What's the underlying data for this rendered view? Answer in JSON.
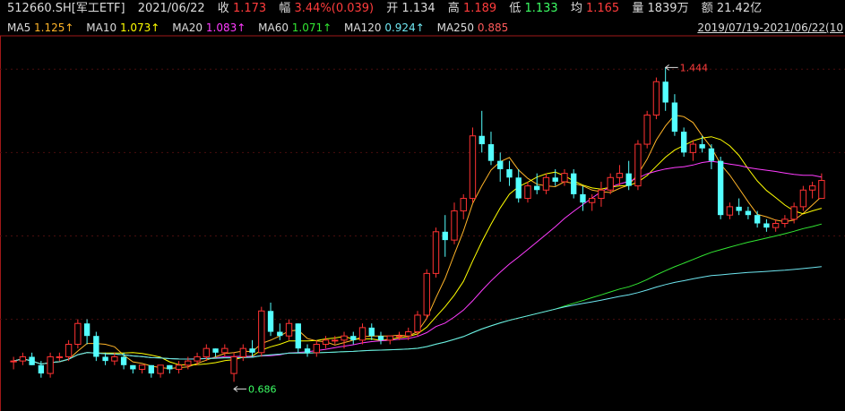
{
  "header": {
    "symbol": "512660.SH[军工ETF]",
    "date": "2021/06/22",
    "close_label": "收",
    "close_value": "1.173",
    "change_label": "幅",
    "change_value": "3.44%(0.039)",
    "open_label": "开",
    "open_value": "1.134",
    "high_label": "高",
    "high_value": "1.189",
    "low_label": "低",
    "low_value": "1.133",
    "avg_label": "均",
    "avg_value": "1.165",
    "volume_label": "量",
    "volume_value": "1839万",
    "amount_label": "额",
    "amount_value": "21.42亿"
  },
  "ma_legend": [
    {
      "name": "MA5",
      "value": "1.125↑",
      "color": "#ffb428"
    },
    {
      "name": "MA10",
      "value": "1.073↑",
      "color": "#ffff00"
    },
    {
      "name": "MA20",
      "value": "1.083↑",
      "color": "#ff3cff"
    },
    {
      "name": "MA60",
      "value": "1.071↑",
      "color": "#32e632"
    },
    {
      "name": "MA120",
      "value": "0.924↑",
      "color": "#6ee6f0"
    },
    {
      "name": "MA250",
      "value": "0.885",
      "color": "#ff5a5a"
    }
  ],
  "date_range": "2019/07/19-2021/06/22(10",
  "colors": {
    "up": "#ff3232",
    "down": "#54ffff",
    "grid": "#4a0e0e",
    "axis": "#a01818",
    "text_up": "#ff3c3c",
    "text_down": "#3cff64"
  },
  "chart_data": {
    "type": "candlestick",
    "y_range": [
      0.62,
      1.52
    ],
    "annotations": [
      {
        "label": "1.444",
        "type": "max"
      },
      {
        "label": "0.686",
        "type": "min"
      }
    ],
    "ohlc": [
      [
        0.74,
        0.75,
        0.72,
        0.74
      ],
      [
        0.74,
        0.76,
        0.73,
        0.75
      ],
      [
        0.75,
        0.76,
        0.73,
        0.73
      ],
      [
        0.73,
        0.74,
        0.7,
        0.71
      ],
      [
        0.71,
        0.76,
        0.7,
        0.75
      ],
      [
        0.75,
        0.76,
        0.74,
        0.75
      ],
      [
        0.75,
        0.79,
        0.74,
        0.78
      ],
      [
        0.78,
        0.84,
        0.77,
        0.83
      ],
      [
        0.83,
        0.84,
        0.78,
        0.8
      ],
      [
        0.8,
        0.81,
        0.74,
        0.75
      ],
      [
        0.75,
        0.76,
        0.73,
        0.74
      ],
      [
        0.74,
        0.76,
        0.73,
        0.75
      ],
      [
        0.75,
        0.76,
        0.72,
        0.73
      ],
      [
        0.73,
        0.73,
        0.71,
        0.72
      ],
      [
        0.72,
        0.73,
        0.71,
        0.73
      ],
      [
        0.73,
        0.73,
        0.7,
        0.71
      ],
      [
        0.71,
        0.73,
        0.7,
        0.73
      ],
      [
        0.73,
        0.73,
        0.71,
        0.72
      ],
      [
        0.72,
        0.74,
        0.71,
        0.73
      ],
      [
        0.73,
        0.75,
        0.72,
        0.74
      ],
      [
        0.74,
        0.76,
        0.73,
        0.75
      ],
      [
        0.75,
        0.78,
        0.74,
        0.77
      ],
      [
        0.77,
        0.77,
        0.75,
        0.76
      ],
      [
        0.76,
        0.78,
        0.75,
        0.77
      ],
      [
        0.71,
        0.76,
        0.69,
        0.75
      ],
      [
        0.75,
        0.78,
        0.74,
        0.77
      ],
      [
        0.77,
        0.79,
        0.75,
        0.76
      ],
      [
        0.76,
        0.87,
        0.75,
        0.86
      ],
      [
        0.86,
        0.88,
        0.8,
        0.81
      ],
      [
        0.81,
        0.83,
        0.79,
        0.8
      ],
      [
        0.8,
        0.84,
        0.79,
        0.83
      ],
      [
        0.83,
        0.83,
        0.76,
        0.77
      ],
      [
        0.77,
        0.78,
        0.75,
        0.76
      ],
      [
        0.76,
        0.79,
        0.75,
        0.78
      ],
      [
        0.78,
        0.8,
        0.77,
        0.79
      ],
      [
        0.79,
        0.8,
        0.78,
        0.79
      ],
      [
        0.79,
        0.81,
        0.77,
        0.8
      ],
      [
        0.8,
        0.81,
        0.78,
        0.79
      ],
      [
        0.79,
        0.83,
        0.78,
        0.82
      ],
      [
        0.82,
        0.83,
        0.79,
        0.8
      ],
      [
        0.8,
        0.81,
        0.78,
        0.79
      ],
      [
        0.79,
        0.8,
        0.78,
        0.8
      ],
      [
        0.8,
        0.81,
        0.79,
        0.8
      ],
      [
        0.8,
        0.82,
        0.79,
        0.81
      ],
      [
        0.81,
        0.86,
        0.8,
        0.85
      ],
      [
        0.85,
        0.96,
        0.84,
        0.95
      ],
      [
        0.95,
        1.06,
        0.94,
        1.05
      ],
      [
        1.05,
        1.09,
        0.99,
        1.03
      ],
      [
        1.03,
        1.12,
        1.02,
        1.1
      ],
      [
        1.1,
        1.14,
        1.08,
        1.13
      ],
      [
        1.13,
        1.3,
        1.12,
        1.28
      ],
      [
        1.28,
        1.34,
        1.24,
        1.26
      ],
      [
        1.26,
        1.29,
        1.21,
        1.22
      ],
      [
        1.22,
        1.24,
        1.17,
        1.2
      ],
      [
        1.2,
        1.22,
        1.16,
        1.18
      ],
      [
        1.18,
        1.2,
        1.12,
        1.13
      ],
      [
        1.13,
        1.17,
        1.12,
        1.16
      ],
      [
        1.16,
        1.19,
        1.14,
        1.15
      ],
      [
        1.15,
        1.19,
        1.14,
        1.18
      ],
      [
        1.18,
        1.2,
        1.16,
        1.17
      ],
      [
        1.17,
        1.2,
        1.16,
        1.19
      ],
      [
        1.19,
        1.2,
        1.13,
        1.14
      ],
      [
        1.14,
        1.16,
        1.1,
        1.12
      ],
      [
        1.12,
        1.14,
        1.1,
        1.13
      ],
      [
        1.13,
        1.17,
        1.11,
        1.15
      ],
      [
        1.15,
        1.19,
        1.14,
        1.18
      ],
      [
        1.18,
        1.21,
        1.16,
        1.19
      ],
      [
        1.19,
        1.22,
        1.15,
        1.16
      ],
      [
        1.16,
        1.27,
        1.15,
        1.26
      ],
      [
        1.26,
        1.34,
        1.25,
        1.33
      ],
      [
        1.33,
        1.42,
        1.32,
        1.41
      ],
      [
        1.41,
        1.444,
        1.34,
        1.36
      ],
      [
        1.36,
        1.38,
        1.28,
        1.29
      ],
      [
        1.29,
        1.3,
        1.23,
        1.24
      ],
      [
        1.24,
        1.27,
        1.22,
        1.26
      ],
      [
        1.26,
        1.28,
        1.24,
        1.25
      ],
      [
        1.25,
        1.26,
        1.2,
        1.22
      ],
      [
        1.22,
        1.23,
        1.08,
        1.09
      ],
      [
        1.09,
        1.12,
        1.08,
        1.11
      ],
      [
        1.11,
        1.13,
        1.09,
        1.1
      ],
      [
        1.1,
        1.11,
        1.08,
        1.09
      ],
      [
        1.09,
        1.1,
        1.06,
        1.07
      ],
      [
        1.07,
        1.08,
        1.05,
        1.06
      ],
      [
        1.06,
        1.08,
        1.05,
        1.07
      ],
      [
        1.07,
        1.09,
        1.06,
        1.08
      ],
      [
        1.08,
        1.12,
        1.07,
        1.11
      ],
      [
        1.11,
        1.16,
        1.1,
        1.15
      ],
      [
        1.15,
        1.17,
        1.13,
        1.16
      ],
      [
        1.13,
        1.19,
        1.13,
        1.173
      ]
    ]
  }
}
